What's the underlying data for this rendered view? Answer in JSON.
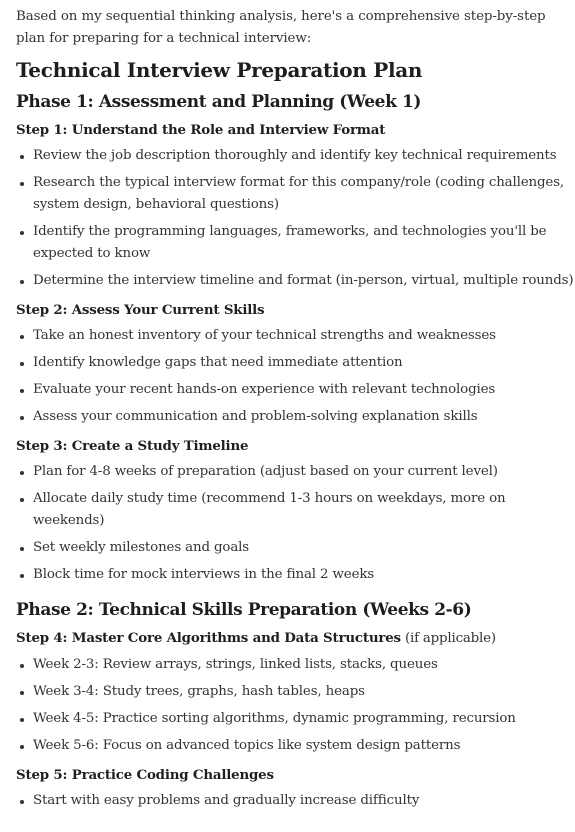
{
  "intro": "Based on my sequential thinking analysis, here's a comprehensive step-by-step plan for preparing for a technical interview:",
  "title": "Technical Interview Preparation Plan",
  "phases": [
    {
      "heading": "Phase 1: Assessment and Planning (Week 1)",
      "steps": [
        {
          "heading": "Step 1: Understand the Role and Interview Format",
          "note": "",
          "items": [
            "Review the job description thoroughly and identify key technical requirements",
            "Research the typical interview format for this company/role (coding challenges, system design, behavioral questions)",
            "Identify the programming languages, frameworks, and technologies you'll be expected to know",
            "Determine the interview timeline and format (in-person, virtual, multiple rounds)"
          ]
        },
        {
          "heading": "Step 2: Assess Your Current Skills",
          "note": "",
          "items": [
            "Take an honest inventory of your technical strengths and weaknesses",
            "Identify knowledge gaps that need immediate attention",
            "Evaluate your recent hands-on experience with relevant technologies",
            "Assess your communication and problem-solving explanation skills"
          ]
        },
        {
          "heading": "Step 3: Create a Study Timeline",
          "note": "",
          "items": [
            "Plan for 4-8 weeks of preparation (adjust based on your current level)",
            "Allocate daily study time (recommend 1-3 hours on weekdays, more on weekends)",
            "Set weekly milestones and goals",
            "Block time for mock interviews in the final 2 weeks"
          ]
        }
      ]
    },
    {
      "heading": "Phase 2: Technical Skills Preparation (Weeks 2-6)",
      "steps": [
        {
          "heading": "Step 4: Master Core Algorithms and Data Structures",
          "note": " (if applicable)",
          "items": [
            "Week 2-3: Review arrays, strings, linked lists, stacks, queues",
            "Week 3-4: Study trees, graphs, hash tables, heaps",
            "Week 4-5: Practice sorting algorithms, dynamic programming, recursion",
            "Week 5-6: Focus on advanced topics like system design patterns"
          ]
        },
        {
          "heading": "Step 5: Practice Coding Challenges",
          "note": "",
          "items": [
            "Start with easy problems and gradually increase difficulty"
          ]
        }
      ]
    }
  ]
}
